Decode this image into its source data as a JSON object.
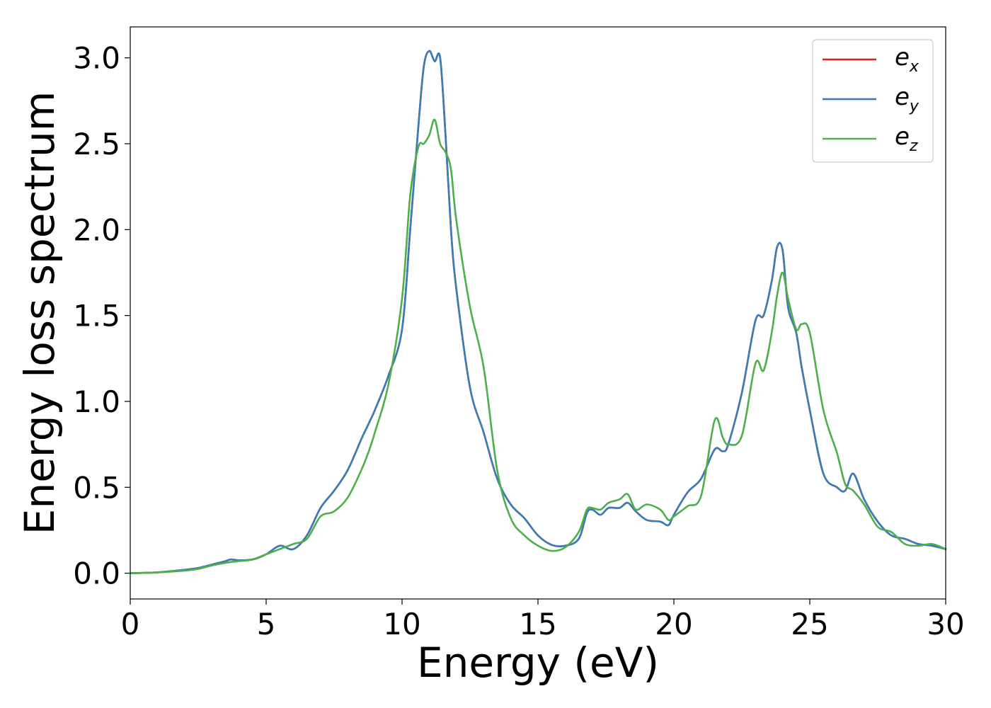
{
  "chart_data": {
    "type": "line",
    "xlabel": "Energy (eV)",
    "ylabel": "Energy loss spectrum",
    "xlim": [
      0,
      30
    ],
    "ylim": [
      -0.15,
      3.18
    ],
    "xticks": [
      0,
      5,
      10,
      15,
      20,
      25,
      30
    ],
    "yticks": [
      0.0,
      0.5,
      1.0,
      1.5,
      2.0,
      2.5,
      3.0
    ],
    "xtick_labels": [
      "0",
      "5",
      "10",
      "15",
      "20",
      "25",
      "30"
    ],
    "ytick_labels": [
      "0.0",
      "0.5",
      "1.0",
      "1.5",
      "2.0",
      "2.5",
      "3.0"
    ],
    "grid": false,
    "legend_position": "top-right",
    "x": [
      0,
      1,
      2,
      2.5,
      3,
      3.5,
      3.7,
      4,
      4.5,
      5,
      5.5,
      6,
      6.5,
      7,
      7.5,
      8,
      8.5,
      8.8,
      9,
      9.5,
      10,
      10.3,
      10.6,
      10.8,
      11.0,
      11.2,
      11.4,
      11.6,
      11.8,
      12,
      12.5,
      13,
      13.5,
      14,
      14.5,
      15,
      15.5,
      16,
      16.5,
      16.8,
      17,
      17.3,
      17.6,
      18,
      18.3,
      18.6,
      19,
      19.5,
      19.8,
      20,
      20.5,
      21,
      21.5,
      21.8,
      22,
      22.5,
      23,
      23.3,
      23.6,
      23.8,
      24,
      24.2,
      24.5,
      24.7,
      25,
      25.5,
      26,
      26.3,
      26.6,
      27,
      27.5,
      28,
      28.5,
      29,
      29.5,
      30
    ],
    "series": [
      {
        "name": "e_x",
        "label_base": "e",
        "label_sub": "x",
        "color": "#e41a1c",
        "values": [
          0.0,
          0.005,
          0.02,
          0.03,
          0.05,
          0.07,
          0.08,
          0.075,
          0.08,
          0.11,
          0.16,
          0.14,
          0.22,
          0.38,
          0.48,
          0.6,
          0.78,
          0.88,
          0.95,
          1.15,
          1.42,
          2.0,
          2.6,
          2.95,
          3.04,
          2.98,
          3.0,
          2.55,
          2.0,
          1.65,
          1.08,
          0.82,
          0.55,
          0.4,
          0.32,
          0.22,
          0.165,
          0.16,
          0.2,
          0.35,
          0.37,
          0.34,
          0.38,
          0.38,
          0.41,
          0.36,
          0.31,
          0.3,
          0.28,
          0.34,
          0.47,
          0.55,
          0.72,
          0.71,
          0.75,
          1.05,
          1.47,
          1.5,
          1.7,
          1.9,
          1.88,
          1.55,
          1.4,
          1.2,
          0.95,
          0.58,
          0.5,
          0.48,
          0.58,
          0.43,
          0.3,
          0.22,
          0.2,
          0.17,
          0.16,
          0.14
        ]
      },
      {
        "name": "e_y",
        "label_base": "e",
        "label_sub": "y",
        "color": "#377eb8",
        "values": [
          0.0,
          0.005,
          0.02,
          0.03,
          0.05,
          0.07,
          0.08,
          0.075,
          0.08,
          0.11,
          0.16,
          0.14,
          0.22,
          0.38,
          0.48,
          0.6,
          0.78,
          0.88,
          0.95,
          1.15,
          1.42,
          2.0,
          2.6,
          2.95,
          3.04,
          2.98,
          3.0,
          2.55,
          2.0,
          1.65,
          1.08,
          0.82,
          0.55,
          0.4,
          0.32,
          0.22,
          0.165,
          0.16,
          0.2,
          0.35,
          0.37,
          0.34,
          0.38,
          0.38,
          0.41,
          0.36,
          0.31,
          0.3,
          0.28,
          0.34,
          0.47,
          0.55,
          0.72,
          0.71,
          0.75,
          1.05,
          1.47,
          1.5,
          1.7,
          1.9,
          1.88,
          1.55,
          1.4,
          1.2,
          0.95,
          0.58,
          0.5,
          0.48,
          0.58,
          0.43,
          0.3,
          0.22,
          0.2,
          0.17,
          0.16,
          0.14
        ]
      },
      {
        "name": "e_z",
        "label_base": "e",
        "label_sub": "z",
        "color": "#4daf4a",
        "values": [
          0.0,
          0.004,
          0.015,
          0.025,
          0.045,
          0.06,
          0.065,
          0.07,
          0.08,
          0.11,
          0.14,
          0.17,
          0.2,
          0.33,
          0.36,
          0.44,
          0.6,
          0.72,
          0.82,
          1.1,
          1.6,
          2.2,
          2.48,
          2.5,
          2.55,
          2.64,
          2.5,
          2.45,
          2.35,
          2.05,
          1.55,
          1.2,
          0.6,
          0.32,
          0.22,
          0.16,
          0.13,
          0.15,
          0.24,
          0.37,
          0.38,
          0.37,
          0.41,
          0.43,
          0.46,
          0.37,
          0.4,
          0.37,
          0.31,
          0.33,
          0.39,
          0.45,
          0.89,
          0.79,
          0.75,
          0.8,
          1.22,
          1.18,
          1.4,
          1.62,
          1.75,
          1.6,
          1.42,
          1.45,
          1.4,
          0.95,
          0.7,
          0.52,
          0.48,
          0.4,
          0.27,
          0.24,
          0.17,
          0.16,
          0.17,
          0.14
        ]
      }
    ]
  }
}
